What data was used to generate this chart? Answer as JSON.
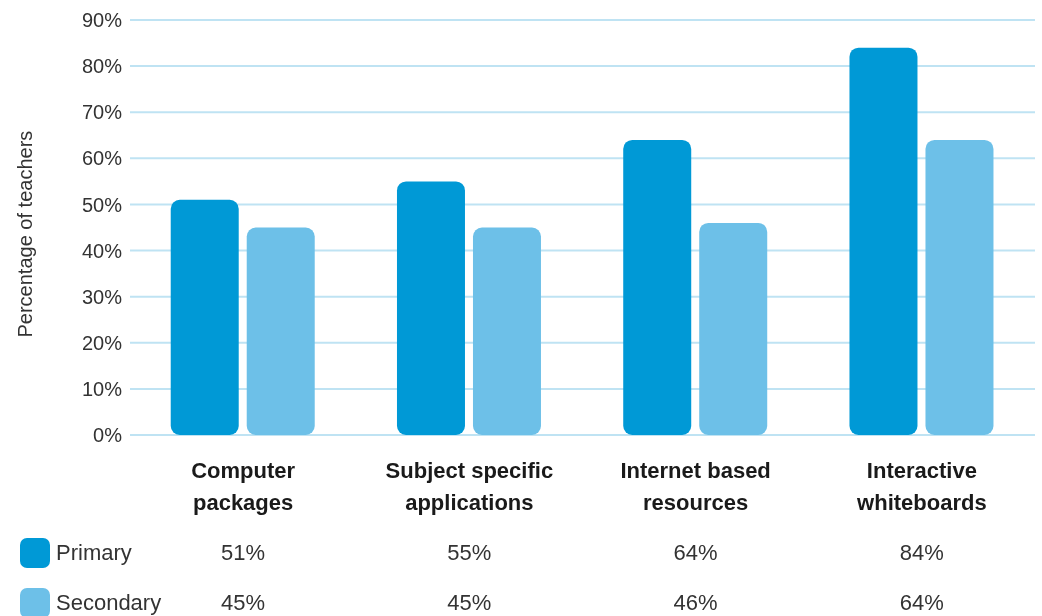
{
  "chart_data": {
    "type": "bar",
    "ylabel": "Percentage of teachers",
    "categories": [
      "Computer packages",
      "Subject specific applications",
      "Internet based resources",
      "Interactive whiteboards"
    ],
    "series": [
      {
        "name": "Primary",
        "color": "#0099d6",
        "values": [
          51,
          55,
          64,
          84
        ],
        "value_labels": [
          "51%",
          "55%",
          "64%",
          "84%"
        ]
      },
      {
        "name": "Secondary",
        "color": "#6dc0e8",
        "values": [
          45,
          45,
          46,
          64
        ],
        "value_labels": [
          "45%",
          "45%",
          "46%",
          "64%"
        ]
      }
    ],
    "ylim": [
      0,
      90
    ],
    "yticks": [
      {
        "value": 0,
        "label": "0%"
      },
      {
        "value": 10,
        "label": "10%"
      },
      {
        "value": 20,
        "label": "20%"
      },
      {
        "value": 30,
        "label": "30%"
      },
      {
        "value": 40,
        "label": "40%"
      },
      {
        "value": 50,
        "label": "50%"
      },
      {
        "value": 60,
        "label": "60%"
      },
      {
        "value": 70,
        "label": "70%"
      },
      {
        "value": 80,
        "label": "80%"
      },
      {
        "value": 90,
        "label": "90%"
      }
    ],
    "grid": "y",
    "legend": "bottom"
  }
}
